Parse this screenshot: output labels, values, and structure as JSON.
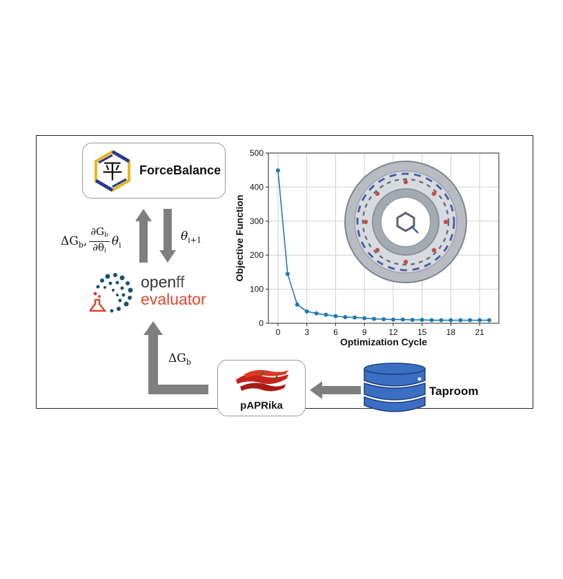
{
  "diagram": {
    "forcebalance": {
      "label": "ForceBalance",
      "logo_char": "平"
    },
    "openff": {
      "word1": "open",
      "word1_suffix": "ff",
      "word2": "evaluator"
    },
    "paprika": {
      "label": "pAPRika"
    },
    "taproom": {
      "label": "Taproom"
    },
    "upward_arrow_label": {
      "dg": "ΔG",
      "sub_b": "b",
      "partial_num": "∂G",
      "partial_den": "∂θ",
      "sub_i": "i",
      "theta": "θ"
    },
    "downward_arrow_label": {
      "theta": "θ",
      "sub": "i+1"
    },
    "paprika_arrow_label": {
      "dg": "ΔG",
      "sub_b": "b"
    }
  },
  "colors": {
    "arrow": "#7f7f7f",
    "line": "#1f77b4",
    "forcebalance_hex_yellow": "#e8b51c",
    "forcebalance_hex_blue": "#2a3a8c",
    "openff_red": "#e0452f",
    "openff_blue": "#1d4f73",
    "database_blue": "#3a6fc4"
  },
  "chart_data": {
    "type": "line",
    "xlabel": "Optimization Cycle",
    "ylabel": "Objective Function",
    "xlim": [
      -1,
      23
    ],
    "ylim": [
      0,
      500
    ],
    "x_ticks": [
      0,
      3,
      6,
      9,
      12,
      15,
      18,
      21
    ],
    "y_ticks": [
      0,
      100,
      200,
      300,
      400,
      500
    ],
    "grid": true,
    "x": [
      0,
      1,
      2,
      3,
      4,
      5,
      6,
      7,
      8,
      9,
      10,
      11,
      12,
      13,
      14,
      15,
      16,
      17,
      18,
      19,
      20,
      21,
      22
    ],
    "series": [
      {
        "values": [
          449,
          145,
          55,
          35,
          29,
          25,
          21,
          18,
          17,
          15,
          13,
          12,
          11,
          11,
          10,
          10,
          9,
          9,
          9,
          9,
          9,
          9,
          9
        ]
      }
    ]
  }
}
